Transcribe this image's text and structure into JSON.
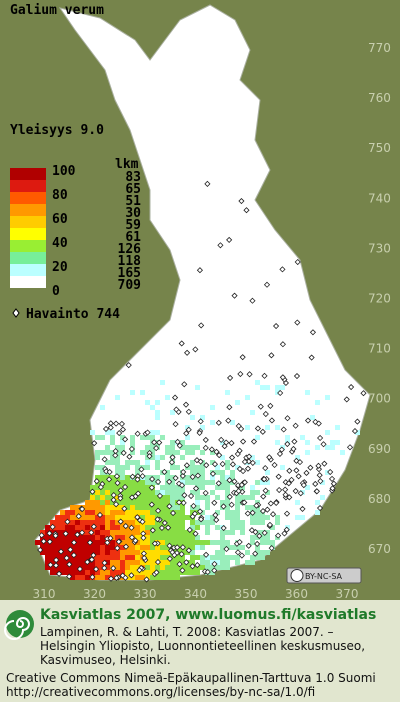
{
  "title": "Galium verum",
  "frequency": "Yleisyys  9.0",
  "legend": {
    "scale_labels": [
      100,
      80,
      60,
      40,
      20,
      0
    ],
    "count_header": "lkm",
    "counts": [
      83,
      65,
      51,
      30,
      59,
      61,
      126,
      118,
      165,
      709
    ]
  },
  "observations": "Havainto  744",
  "grid": {
    "y_labels": [
      770,
      760,
      750,
      740,
      730,
      720,
      710,
      700,
      690,
      680,
      670
    ],
    "x_labels": [
      310,
      320,
      330,
      340,
      350,
      360,
      370
    ]
  },
  "badge": "BY-NC-SA",
  "footer": {
    "heading": "Kasviatlas 2007, www.luomus.fi/kasviatlas",
    "lines": [
      "Lampinen, R. & Lahti, T. 2008: Kasviatlas 2007. –",
      "Helsingin Yliopisto, Luonnontieteellinen keskusmuseo,",
      "Kasvimuseo, Helsinki.",
      "Creative Commons Nimeä-Epäkaupallinen-Tarttuva 1.0 Suomi",
      "http://creativecommons.org/licenses/by-nc-sa/1.0/fi"
    ]
  }
}
